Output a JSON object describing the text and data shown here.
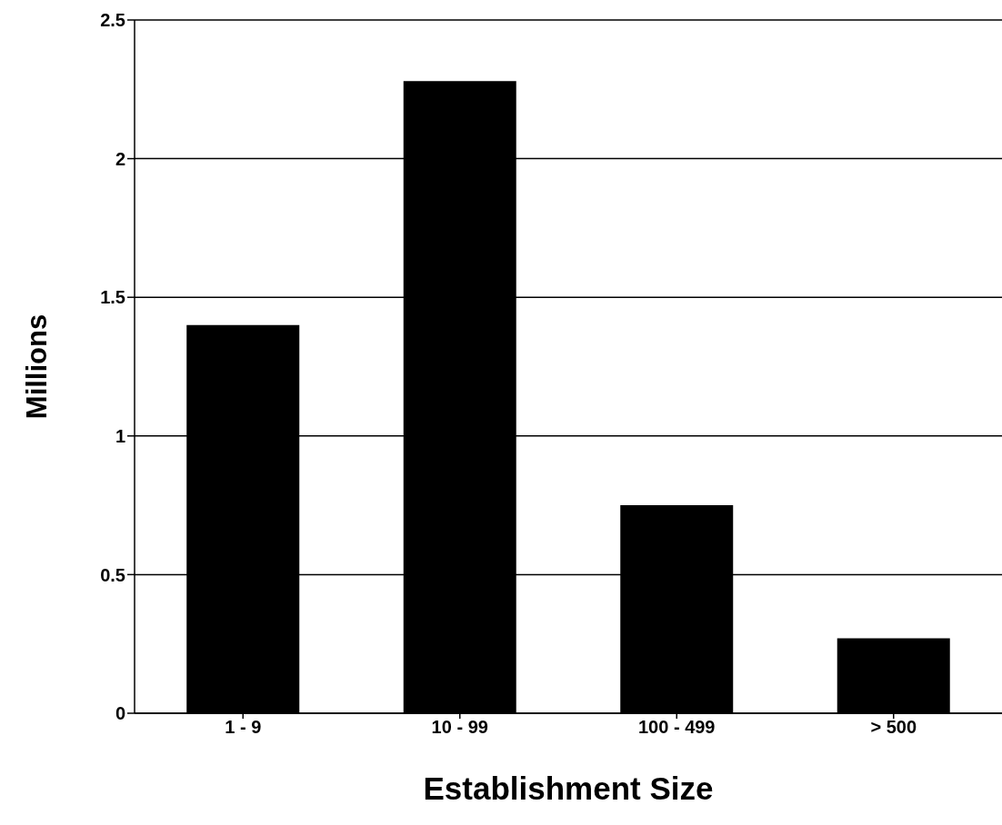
{
  "chart_data": {
    "type": "bar",
    "xlabel": "Establishment Size",
    "ylabel": "Millions",
    "categories": [
      "1 - 9",
      "10 - 99",
      "100 - 499",
      "> 500"
    ],
    "values": [
      1.4,
      2.28,
      0.75,
      0.27
    ],
    "color": "#000000",
    "ylim": [
      0,
      2.5
    ],
    "yticks": [
      0,
      0.5,
      1,
      1.5,
      2,
      2.5
    ],
    "grid": "y",
    "legend": false
  }
}
